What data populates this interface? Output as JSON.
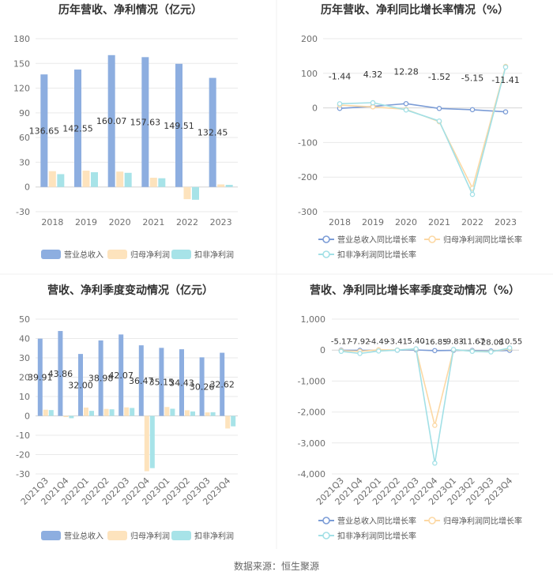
{
  "source_note": "数据来源：恒生聚源",
  "chart_data": [
    {
      "type": "bar",
      "title": "历年营收、净利情况（亿元）",
      "categories": [
        "2018",
        "2019",
        "2020",
        "2021",
        "2022",
        "2023"
      ],
      "yaxis": {
        "min": -30,
        "max": 180,
        "ticks": [
          180,
          150,
          120,
          90,
          60,
          30,
          0,
          -30
        ],
        "tick_labels": [
          "180",
          "150",
          "120",
          "90",
          "60",
          "30",
          "0",
          "-30"
        ]
      },
      "series": [
        {
          "name": "营业总收入",
          "color": "#8daee0",
          "values": [
            136.65,
            142.55,
            160.07,
            157.63,
            149.51,
            132.45
          ],
          "labels": [
            "136.65",
            "142.55",
            "160.07",
            "157.63",
            "149.51",
            "132.45"
          ]
        },
        {
          "name": "归母净利润",
          "color": "#fde3bd",
          "values": [
            19.2,
            19.8,
            18.7,
            11.2,
            -14.8,
            3.1
          ]
        },
        {
          "name": "扣非净利润",
          "color": "#a7e3e8",
          "values": [
            15.6,
            17.9,
            17.2,
            10.6,
            -15.5,
            2.6
          ]
        }
      ],
      "legend": "bottom",
      "grid": true
    },
    {
      "type": "line",
      "title": "历年营收、净利同比增长率情况（%）",
      "categories": [
        "2018",
        "2019",
        "2020",
        "2021",
        "2022",
        "2023"
      ],
      "yaxis": {
        "min": -300,
        "max": 200,
        "ticks": [
          200,
          100,
          0,
          -100,
          -200,
          -300
        ],
        "tick_labels": [
          "200",
          "100",
          "0",
          "-100",
          "-200",
          "-300"
        ]
      },
      "series": [
        {
          "name": "营业总收入同比增长率",
          "color": "#7b9cd6",
          "values": [
            -1.44,
            4.32,
            12.28,
            -1.52,
            -5.15,
            -11.41
          ],
          "labels": [
            "-1.44",
            "4.32",
            "12.28",
            "-1.52",
            "-5.15",
            "-11.41"
          ]
        },
        {
          "name": "归母净利润同比增长率",
          "color": "#fcd8a4",
          "values": [
            8,
            3,
            -4,
            -40,
            -232,
            120
          ]
        },
        {
          "name": "扣非净利润同比增长率",
          "color": "#a2e0e6",
          "values": [
            12,
            15,
            -6,
            -38,
            -250,
            118
          ]
        }
      ],
      "legend": "bottom",
      "grid": true
    },
    {
      "type": "bar",
      "title": "营收、净利季度变动情况（亿元）",
      "categories": [
        "2021Q3",
        "2021Q4",
        "2022Q1",
        "2022Q2",
        "2022Q3",
        "2022Q4",
        "2023Q1",
        "2023Q2",
        "2023Q3",
        "2023Q4"
      ],
      "yaxis": {
        "min": -30,
        "max": 50,
        "ticks": [
          50,
          40,
          30,
          20,
          10,
          0,
          -10,
          -20,
          -30
        ],
        "tick_labels": [
          "50",
          "40",
          "30",
          "20",
          "10",
          "0",
          "-10",
          "-20",
          "-30"
        ]
      },
      "series": [
        {
          "name": "营业总收入",
          "color": "#8daee0",
          "values": [
            39.91,
            43.86,
            32.0,
            38.98,
            42.07,
            36.47,
            35.15,
            34.43,
            30.26,
            32.62
          ],
          "labels": [
            "39.91",
            "43.86",
            "32.00",
            "38.98",
            "42.07",
            "36.47",
            "35.15",
            "34.43",
            "30.26",
            "32.62"
          ]
        },
        {
          "name": "归母净利润",
          "color": "#fde3bd",
          "values": [
            3.2,
            -0.6,
            4.3,
            3.6,
            4.4,
            -28.6,
            4.6,
            2.9,
            1.8,
            -6.5
          ]
        },
        {
          "name": "扣非净利润",
          "color": "#a7e3e8",
          "values": [
            3.0,
            -1.2,
            2.6,
            3.4,
            4.1,
            -27.0,
            3.7,
            2.3,
            1.9,
            -5.4
          ]
        }
      ],
      "legend": "bottom",
      "grid": true
    },
    {
      "type": "line",
      "title": "营收、净利同比增长率季度变动情况（%）",
      "categories": [
        "2021Q3",
        "2021Q4",
        "2022Q1",
        "2022Q2",
        "2022Q3",
        "2022Q4",
        "2023Q1",
        "2023Q2",
        "2023Q3",
        "2023Q4"
      ],
      "yaxis": {
        "min": -4000,
        "max": 1000,
        "ticks": [
          1000,
          0,
          -1000,
          -2000,
          -3000,
          -4000
        ],
        "tick_labels": [
          "1,000",
          "0",
          "-1,000",
          "-2,000",
          "-3,000",
          "-4,000"
        ]
      },
      "series": [
        {
          "name": "营业总收入同比增长率",
          "color": "#7b9cd6",
          "values": [
            -5.17,
            -7.92,
            -4.49,
            -3.41,
            5.4,
            -16.85,
            -9.83,
            -11.67,
            -28.08,
            -10.55
          ],
          "labels": [
            "-5.17",
            "-7.92",
            "-4.49",
            "-3.41",
            "5.40",
            "-16.85",
            "-9.83",
            "-11.67",
            "-28.08",
            "-10.55"
          ]
        },
        {
          "name": "归母净利润同比增长率",
          "color": "#fcd8a4",
          "values": [
            -20,
            -40,
            10,
            5,
            30,
            -2430,
            10,
            -30,
            -50,
            40
          ]
        },
        {
          "name": "扣非净利润同比增长率",
          "color": "#a2e0e6",
          "values": [
            -40,
            -110,
            -30,
            0,
            40,
            -3650,
            20,
            -40,
            -60,
            70
          ]
        }
      ],
      "legend": "bottom",
      "grid": true
    }
  ]
}
